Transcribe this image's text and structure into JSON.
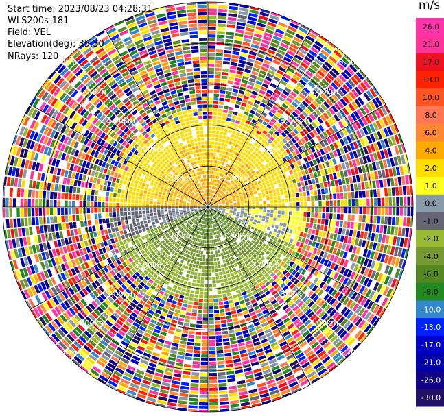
{
  "header": {
    "start_time": "Start time: 2023/08/23 04:28:31",
    "instrument": "WLS200s-181",
    "field": "Field: VEL",
    "elevation": "Elevation(deg): 35.30",
    "nrays": "NRays: 120"
  },
  "chart_data": {
    "type": "heatmap",
    "projection": "polar PPI",
    "field": "VEL",
    "units": "m/s",
    "n_rays": 120,
    "range_rings_km": [
      1.0,
      2.0,
      3.0,
      4.0,
      5.0
    ],
    "ring_labels": [
      "1.00km",
      "2.00km",
      "3.00km",
      "4.00km",
      "5.00km"
    ],
    "spokes_deg": [
      0,
      30,
      60,
      90,
      120,
      150,
      180,
      210,
      240,
      270,
      300,
      330
    ],
    "colorbar": {
      "label": "m/s",
      "ticks": [
        "26.0",
        "21.0",
        "17.0",
        "13.0",
        "10.0",
        "8.0",
        "6.0",
        "4.0",
        "2.0",
        "1.0",
        "0.0",
        "-1.0",
        "-2.0",
        "-4.0",
        "-6.0",
        "-8.0",
        "-10.0",
        "-13.0",
        "-17.0",
        "-21.0",
        "-26.0",
        "-30.0"
      ],
      "colors": [
        "#ff33aa",
        "#ff3399",
        "#ee1122",
        "#ff2200",
        "#ff5522",
        "#ff7755",
        "#ff8833",
        "#ffaa00",
        "#ffdd00",
        "#ffff22",
        "#8899aa",
        "#666677",
        "#99bb33",
        "#779933",
        "#558822",
        "#228822",
        "#3388cc",
        "#0022ff",
        "#0000cc",
        "#0000aa",
        "#110088",
        "#221166"
      ]
    },
    "sectors": [
      {
        "az_start": 270,
        "az_end": 90,
        "near_value": 4.0,
        "far_value": 2.0,
        "clear_range_km": 2.1
      },
      {
        "az_start": 60,
        "az_end": 115,
        "near_value": 0.0,
        "far_value": 1.0,
        "clear_range_km": 2.3
      },
      {
        "az_start": 115,
        "az_end": 250,
        "near_value": -6.0,
        "far_value": -2.0,
        "clear_range_km": 2.2
      },
      {
        "az_start": 245,
        "az_end": 275,
        "near_value": 0.0,
        "far_value": -1.0,
        "clear_range_km": 2.0
      }
    ],
    "noise_beyond_km": 2.4,
    "max_range_km": 5.0
  }
}
